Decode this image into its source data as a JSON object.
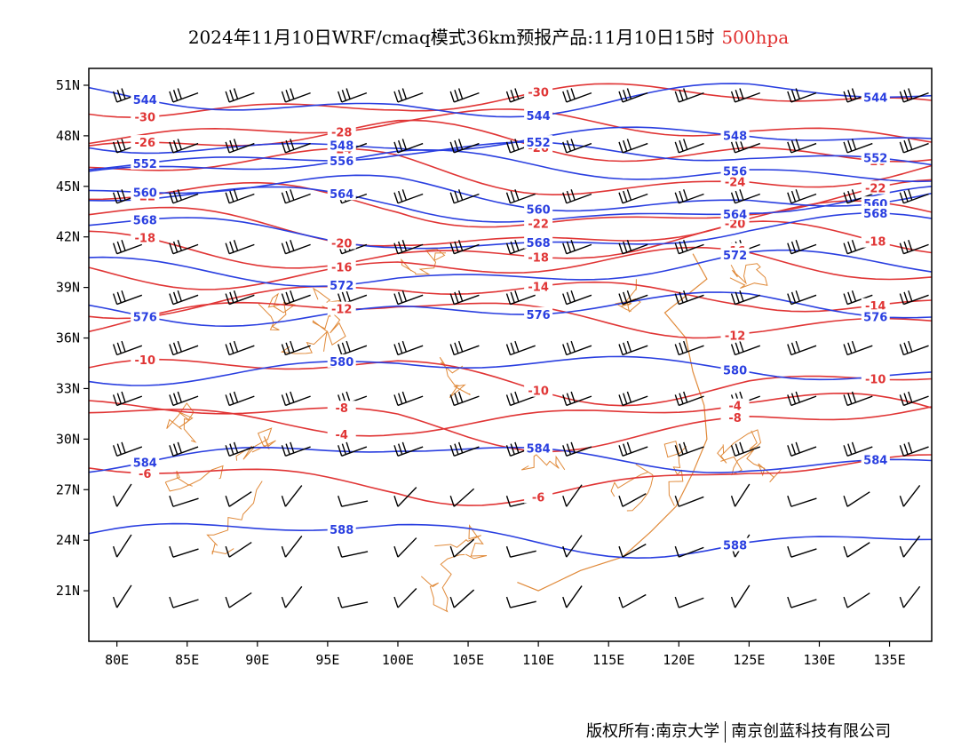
{
  "title": {
    "main": "2024年11月10日WRF/cmaq模式36km预报产品:11月10日15时",
    "level": "500hpa"
  },
  "axes": {
    "lat_labels": [
      "51N",
      "48N",
      "45N",
      "42N",
      "39N",
      "36N",
      "33N",
      "30N",
      "27N",
      "24N",
      "21N"
    ],
    "lon_labels": [
      "80E",
      "85E",
      "90E",
      "95E",
      "100E",
      "105E",
      "110E",
      "115E",
      "120E",
      "125E",
      "130E",
      "135E"
    ],
    "lon_range": [
      78,
      138
    ],
    "lat_range": [
      18,
      52
    ]
  },
  "colors": {
    "height": "#2a3fe0",
    "temperature": "#e03535",
    "border": "#e08a3a",
    "barb": "#000000"
  },
  "height_contours": [
    {
      "value": "544",
      "lat": 50.2
    },
    {
      "value": "548",
      "lat": 47.8
    },
    {
      "value": "552",
      "lat": 46.9
    },
    {
      "value": "556",
      "lat": 46.2
    },
    {
      "value": "560",
      "lat": 44.6
    },
    {
      "value": "564",
      "lat": 44.0
    },
    {
      "value": "568",
      "lat": 42.3
    },
    {
      "value": "572",
      "lat": 40.1
    },
    {
      "value": "576",
      "lat": 37.8
    },
    {
      "value": "580",
      "lat": 34.3
    },
    {
      "value": "584",
      "lat": 29.0
    },
    {
      "value": "588",
      "lat": 24.3
    }
  ],
  "temperature_contours": [
    {
      "value": "-30",
      "lat": 50.2
    },
    {
      "value": "-28",
      "lat": 48.6
    },
    {
      "value": "-26",
      "lat": 47.6
    },
    {
      "value": "-24",
      "lat": 45.9
    },
    {
      "value": "-22",
      "lat": 44.0
    },
    {
      "value": "-20",
      "lat": 42.7
    },
    {
      "value": "-18",
      "lat": 41.5
    },
    {
      "value": "-16",
      "lat": 40.3
    },
    {
      "value": "-14",
      "lat": 38.6
    },
    {
      "value": "-12",
      "lat": 37.4
    },
    {
      "value": "-10",
      "lat": 33.8
    },
    {
      "value": "-8",
      "lat": 31.2
    },
    {
      "value": "-6",
      "lat": 27.8
    },
    {
      "value": "-4",
      "lat": 31.6
    }
  ],
  "footer": {
    "left": "版权所有:南京大学",
    "right": "南京创蓝科技有限公司"
  }
}
